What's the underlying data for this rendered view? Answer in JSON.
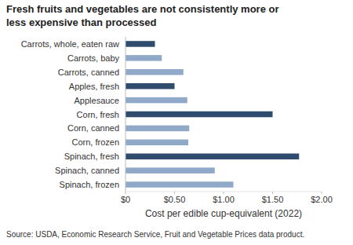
{
  "chart_data": {
    "type": "bar",
    "orientation": "horizontal",
    "title": "Fresh fruits and vegetables are not consistently more or less expensive than processed",
    "x_label": "Cost per edible cup-equivalent (2022)",
    "source": "Source: USDA, Economic Research Service, Fruit and Vegetable Prices data product.",
    "categories": [
      "Carrots, whole, eaten raw",
      "Carrots, baby",
      "Carrots, canned",
      "Apples, fresh",
      "Applesauce",
      "Corn, fresh",
      "Corn, canned",
      "Corn, frozen",
      "Spinach, fresh",
      "Spinach, canned",
      "Spinach, frozen"
    ],
    "values": [
      0.3,
      0.37,
      0.59,
      0.5,
      0.63,
      1.5,
      0.65,
      0.64,
      1.77,
      0.91,
      1.1
    ],
    "colors": [
      "#2f4b6e",
      "#91a9c9",
      "#91a9c9",
      "#2f4b6e",
      "#91a9c9",
      "#2f4b6e",
      "#91a9c9",
      "#91a9c9",
      "#2f4b6e",
      "#91a9c9",
      "#91a9c9"
    ],
    "xlim": [
      0,
      2
    ],
    "xticks": [
      {
        "value": 0,
        "label": "$0"
      },
      {
        "value": 0.5,
        "label": "$0.50"
      },
      {
        "value": 1,
        "label": "$1.00"
      },
      {
        "value": 1.5,
        "label": "$1.50"
      },
      {
        "value": 2,
        "label": "$2.00"
      }
    ],
    "grid": false
  }
}
